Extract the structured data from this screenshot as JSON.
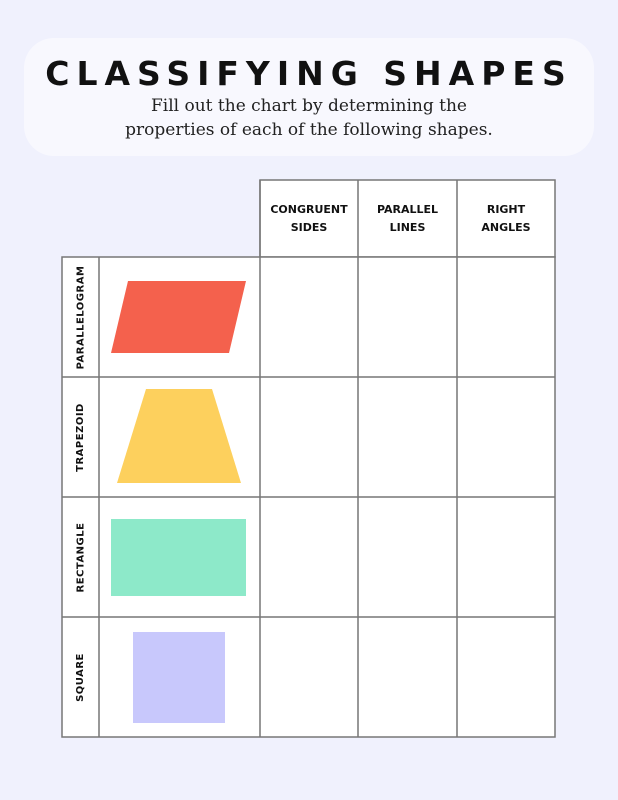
{
  "header": {
    "title": "CLASSIFYING SHAPES",
    "subtitle": [
      "Fill out the chart by determining the",
      "properties of each of the following shapes."
    ]
  },
  "table": {
    "columns": [
      "CONGRUENT SIDES",
      "PARALLEL LINES",
      "RIGHT ANGLES"
    ],
    "rows": [
      "PARALLELOGRAM",
      "TRAPEZOID",
      "RECTANGLE",
      "SQUARE"
    ]
  }
}
